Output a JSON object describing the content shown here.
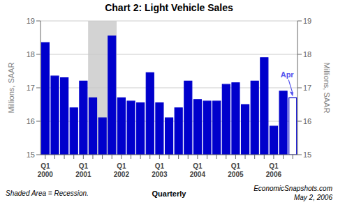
{
  "chart_data": {
    "type": "bar",
    "title": "Chart 2: Light Vehicle Sales",
    "ylabel": "Millions, SAAR",
    "y2label": "Millions, SAAR",
    "categories": [
      "Q1\n2000",
      null,
      null,
      null,
      "Q1\n2001",
      null,
      null,
      null,
      "Q1\n2002",
      null,
      null,
      null,
      "Q1\n2003",
      null,
      null,
      null,
      "Q1\n2004",
      null,
      null,
      null,
      "Q1\n2005",
      null,
      null,
      null,
      "Q1\n2006",
      null,
      null
    ],
    "values": [
      18.35,
      17.35,
      17.3,
      16.4,
      17.2,
      16.7,
      16.1,
      18.55,
      16.7,
      16.6,
      16.55,
      17.45,
      16.55,
      16.1,
      16.4,
      17.2,
      16.65,
      16.6,
      16.6,
      17.1,
      17.15,
      16.5,
      17.2,
      17.9,
      15.85,
      16.9,
      16.7
    ],
    "color": "#0000cc",
    "colors": [
      "#0000cc",
      "#0000cc",
      "#0000cc",
      "#0000cc",
      "#0000cc",
      "#0000cc",
      "#0000cc",
      "#0000cc",
      "#0000cc",
      "#0000cc",
      "#0000cc",
      "#0000cc",
      "#0000cc",
      "#0000cc",
      "#0000cc",
      "#0000cc",
      "#0000cc",
      "#0000cc",
      "#0000cc",
      "#0000cc",
      "#0000cc",
      "#0000cc",
      "#0000cc",
      "#0000cc",
      "#0000cc",
      "#0000cc",
      "#ffffff"
    ],
    "ylim": [
      15,
      19
    ],
    "yticks": [
      15,
      16,
      17,
      18,
      19
    ],
    "y2lim": [
      15,
      19
    ],
    "y2ticks": [
      15,
      16,
      17,
      18,
      19
    ],
    "grid": true,
    "shaded_area": {
      "from": 5,
      "to": 7
    },
    "annotations": [
      {
        "text": "Apr",
        "index": 26
      }
    ],
    "footnotes": {
      "left": "Shaded Area = Recession.",
      "center": "Quarterly",
      "right": [
        "EconomicSnapshots.com",
        "May 2, 2006"
      ]
    }
  }
}
